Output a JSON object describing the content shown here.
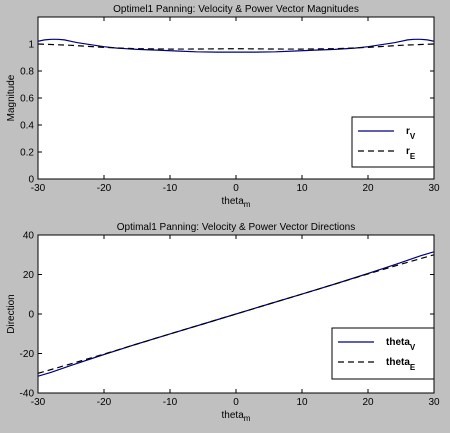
{
  "chart_data": [
    {
      "type": "line",
      "title": "Optimel1 Panning: Velocity & Power Vector Magnitudes",
      "xlabel": "theta",
      "xlabel_sub": "m",
      "ylabel": "Magnitude",
      "xlim": [
        -30,
        30
      ],
      "ylim": [
        0,
        1.2
      ],
      "xticks": [
        -30,
        -20,
        -10,
        0,
        10,
        20,
        30
      ],
      "yticks": [
        0,
        0.2,
        0.4,
        0.6,
        0.8,
        1
      ],
      "legend_position": "bottom-right",
      "series": [
        {
          "name": "r",
          "name_sub": "V",
          "color": "#000080",
          "dash": "solid",
          "x": [
            -30,
            -29,
            -28,
            -27,
            -26,
            -25,
            -24,
            -22,
            -20,
            -18,
            -15,
            -12,
            -9,
            -6,
            -3,
            0,
            3,
            6,
            9,
            12,
            15,
            18,
            20,
            22,
            24,
            25,
            26,
            27,
            28,
            29,
            30
          ],
          "y": [
            1.02,
            1.03,
            1.035,
            1.035,
            1.03,
            1.02,
            1.01,
            0.995,
            0.98,
            0.97,
            0.96,
            0.955,
            0.948,
            0.942,
            0.94,
            0.94,
            0.94,
            0.942,
            0.948,
            0.955,
            0.96,
            0.97,
            0.98,
            0.995,
            1.01,
            1.02,
            1.03,
            1.035,
            1.035,
            1.03,
            1.02
          ]
        },
        {
          "name": "r",
          "name_sub": "E",
          "color": "#000000",
          "dash": "dashed",
          "x": [
            -30,
            -25,
            -20,
            -15,
            -10,
            -5,
            0,
            5,
            10,
            15,
            20,
            25,
            30
          ],
          "y": [
            1.0,
            0.99,
            0.975,
            0.965,
            0.962,
            0.963,
            0.965,
            0.963,
            0.962,
            0.965,
            0.975,
            0.99,
            1.0
          ]
        }
      ]
    },
    {
      "type": "line",
      "title": "Optimal1 Panning: Velocity & Power Vector Directions",
      "xlabel": "theta",
      "xlabel_sub": "m",
      "ylabel": "Direction",
      "xlim": [
        -30,
        30
      ],
      "ylim": [
        -40,
        40
      ],
      "xticks": [
        -30,
        -20,
        -10,
        0,
        10,
        20,
        30
      ],
      "yticks": [
        -40,
        -20,
        0,
        20,
        40
      ],
      "legend_position": "bottom-right",
      "series": [
        {
          "name": "theta",
          "name_sub": "V",
          "color": "#000080",
          "dash": "solid",
          "x": [
            -30,
            -28,
            -25,
            -20,
            -15,
            -10,
            -5,
            0,
            5,
            10,
            15,
            20,
            25,
            28,
            30
          ],
          "y": [
            -31.5,
            -29.5,
            -26,
            -20.5,
            -15.2,
            -10.1,
            -5.05,
            0,
            5.05,
            10.1,
            15.2,
            20.5,
            26,
            29.5,
            31.5
          ]
        },
        {
          "name": "theta",
          "name_sub": "E",
          "color": "#000000",
          "dash": "dashed",
          "x": [
            -30,
            -25,
            -20,
            -15,
            -10,
            -5,
            0,
            5,
            10,
            15,
            20,
            25,
            30
          ],
          "y": [
            -30,
            -25.2,
            -20.3,
            -15.2,
            -10.1,
            -5.05,
            0,
            5.05,
            10.1,
            15.2,
            20.3,
            25.2,
            30
          ]
        }
      ]
    }
  ]
}
